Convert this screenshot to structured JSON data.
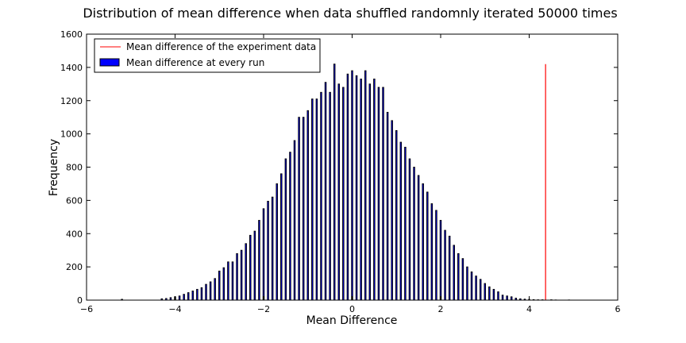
{
  "chart_data": {
    "type": "bar",
    "title": "Distribution of mean difference when data shuffled randomnly iterated 50000 times",
    "xlabel": "Mean Difference",
    "ylabel": "Frequency",
    "xlim": [
      -6,
      6
    ],
    "ylim": [
      0,
      1600
    ],
    "xticks": [
      -6,
      -4,
      -2,
      0,
      2,
      4,
      6
    ],
    "yticks": [
      0,
      200,
      400,
      600,
      800,
      1000,
      1200,
      1400,
      1600
    ],
    "xtick_labels": [
      "−6",
      "−4",
      "−2",
      "0",
      "2",
      "4",
      "6"
    ],
    "ytick_labels": [
      "0",
      "200",
      "400",
      "600",
      "800",
      "1000",
      "1200",
      "1400",
      "1600"
    ],
    "grid": false,
    "legend_position": "top-left",
    "series": [
      {
        "name": "Mean difference at every run",
        "type": "bar",
        "color": "#0000ff",
        "x": [
          -5.2,
          -4.3,
          -4.2,
          -4.1,
          -4.0,
          -3.9,
          -3.8,
          -3.7,
          -3.6,
          -3.5,
          -3.4,
          -3.3,
          -3.2,
          -3.1,
          -3.0,
          -2.9,
          -2.8,
          -2.7,
          -2.6,
          -2.5,
          -2.4,
          -2.3,
          -2.2,
          -2.1,
          -2.0,
          -1.9,
          -1.8,
          -1.7,
          -1.6,
          -1.5,
          -1.4,
          -1.3,
          -1.2,
          -1.1,
          -1.0,
          -0.9,
          -0.8,
          -0.7,
          -0.6,
          -0.5,
          -0.4,
          -0.3,
          -0.2,
          -0.1,
          0.0,
          0.1,
          0.2,
          0.3,
          0.4,
          0.5,
          0.6,
          0.7,
          0.8,
          0.9,
          1.0,
          1.1,
          1.2,
          1.3,
          1.4,
          1.5,
          1.6,
          1.7,
          1.8,
          1.9,
          2.0,
          2.1,
          2.2,
          2.3,
          2.4,
          2.5,
          2.6,
          2.7,
          2.8,
          2.9,
          3.0,
          3.1,
          3.2,
          3.3,
          3.4,
          3.5,
          3.6,
          3.7,
          3.8,
          3.9,
          4.0,
          4.1,
          4.2,
          4.3,
          4.5,
          4.6,
          4.9
        ],
        "values": [
          5,
          8,
          10,
          15,
          20,
          25,
          35,
          45,
          55,
          65,
          75,
          95,
          110,
          130,
          175,
          195,
          230,
          230,
          280,
          300,
          340,
          390,
          415,
          480,
          550,
          595,
          620,
          700,
          760,
          850,
          890,
          960,
          1100,
          1100,
          1140,
          1210,
          1210,
          1250,
          1310,
          1250,
          1420,
          1300,
          1280,
          1360,
          1380,
          1350,
          1330,
          1380,
          1300,
          1330,
          1280,
          1280,
          1130,
          1080,
          1020,
          950,
          920,
          850,
          800,
          750,
          700,
          650,
          580,
          540,
          480,
          420,
          385,
          330,
          280,
          250,
          200,
          170,
          145,
          125,
          100,
          80,
          65,
          50,
          30,
          25,
          20,
          12,
          8,
          6,
          4,
          3,
          2,
          2,
          2,
          1,
          1
        ]
      },
      {
        "name": "Mean difference of the experiment data",
        "type": "vline",
        "color": "#ff0000",
        "x": 4.37,
        "ymin": 0,
        "ymax": 1420
      }
    ]
  }
}
